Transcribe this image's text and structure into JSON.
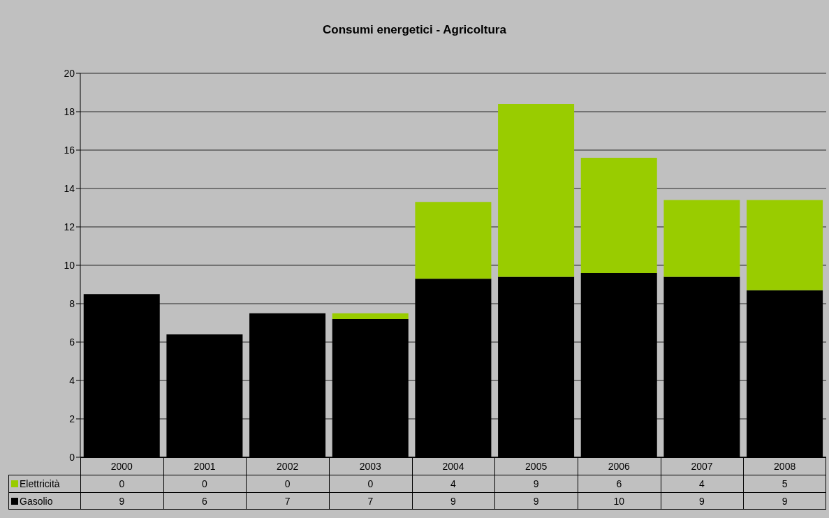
{
  "chart_data": {
    "type": "bar",
    "title": "Consumi energetici - Agricoltura",
    "categories": [
      "2000",
      "2001",
      "2002",
      "2003",
      "2004",
      "2005",
      "2006",
      "2007",
      "2008"
    ],
    "series": [
      {
        "name": "Gasolio",
        "color": "#000000",
        "values": [
          8.5,
          6.4,
          7.5,
          7.2,
          9.3,
          9.4,
          9.6,
          9.4,
          8.7
        ],
        "value_labels": [
          "9",
          "6",
          "7",
          "7",
          "9",
          "9",
          "10",
          "9",
          "9"
        ]
      },
      {
        "name": "Elettricità",
        "color": "#99cc00",
        "values": [
          0,
          0,
          0,
          0.3,
          4.0,
          9.0,
          6.0,
          4.0,
          4.7
        ],
        "value_labels": [
          "0",
          "0",
          "0",
          "0",
          "4",
          "9",
          "6",
          "4",
          "5"
        ]
      }
    ],
    "stacked": true,
    "ylim": [
      0,
      20
    ],
    "yticks": [
      0,
      2,
      4,
      6,
      8,
      10,
      12,
      14,
      16,
      18,
      20
    ],
    "grid": "y",
    "legend": "bottom"
  }
}
